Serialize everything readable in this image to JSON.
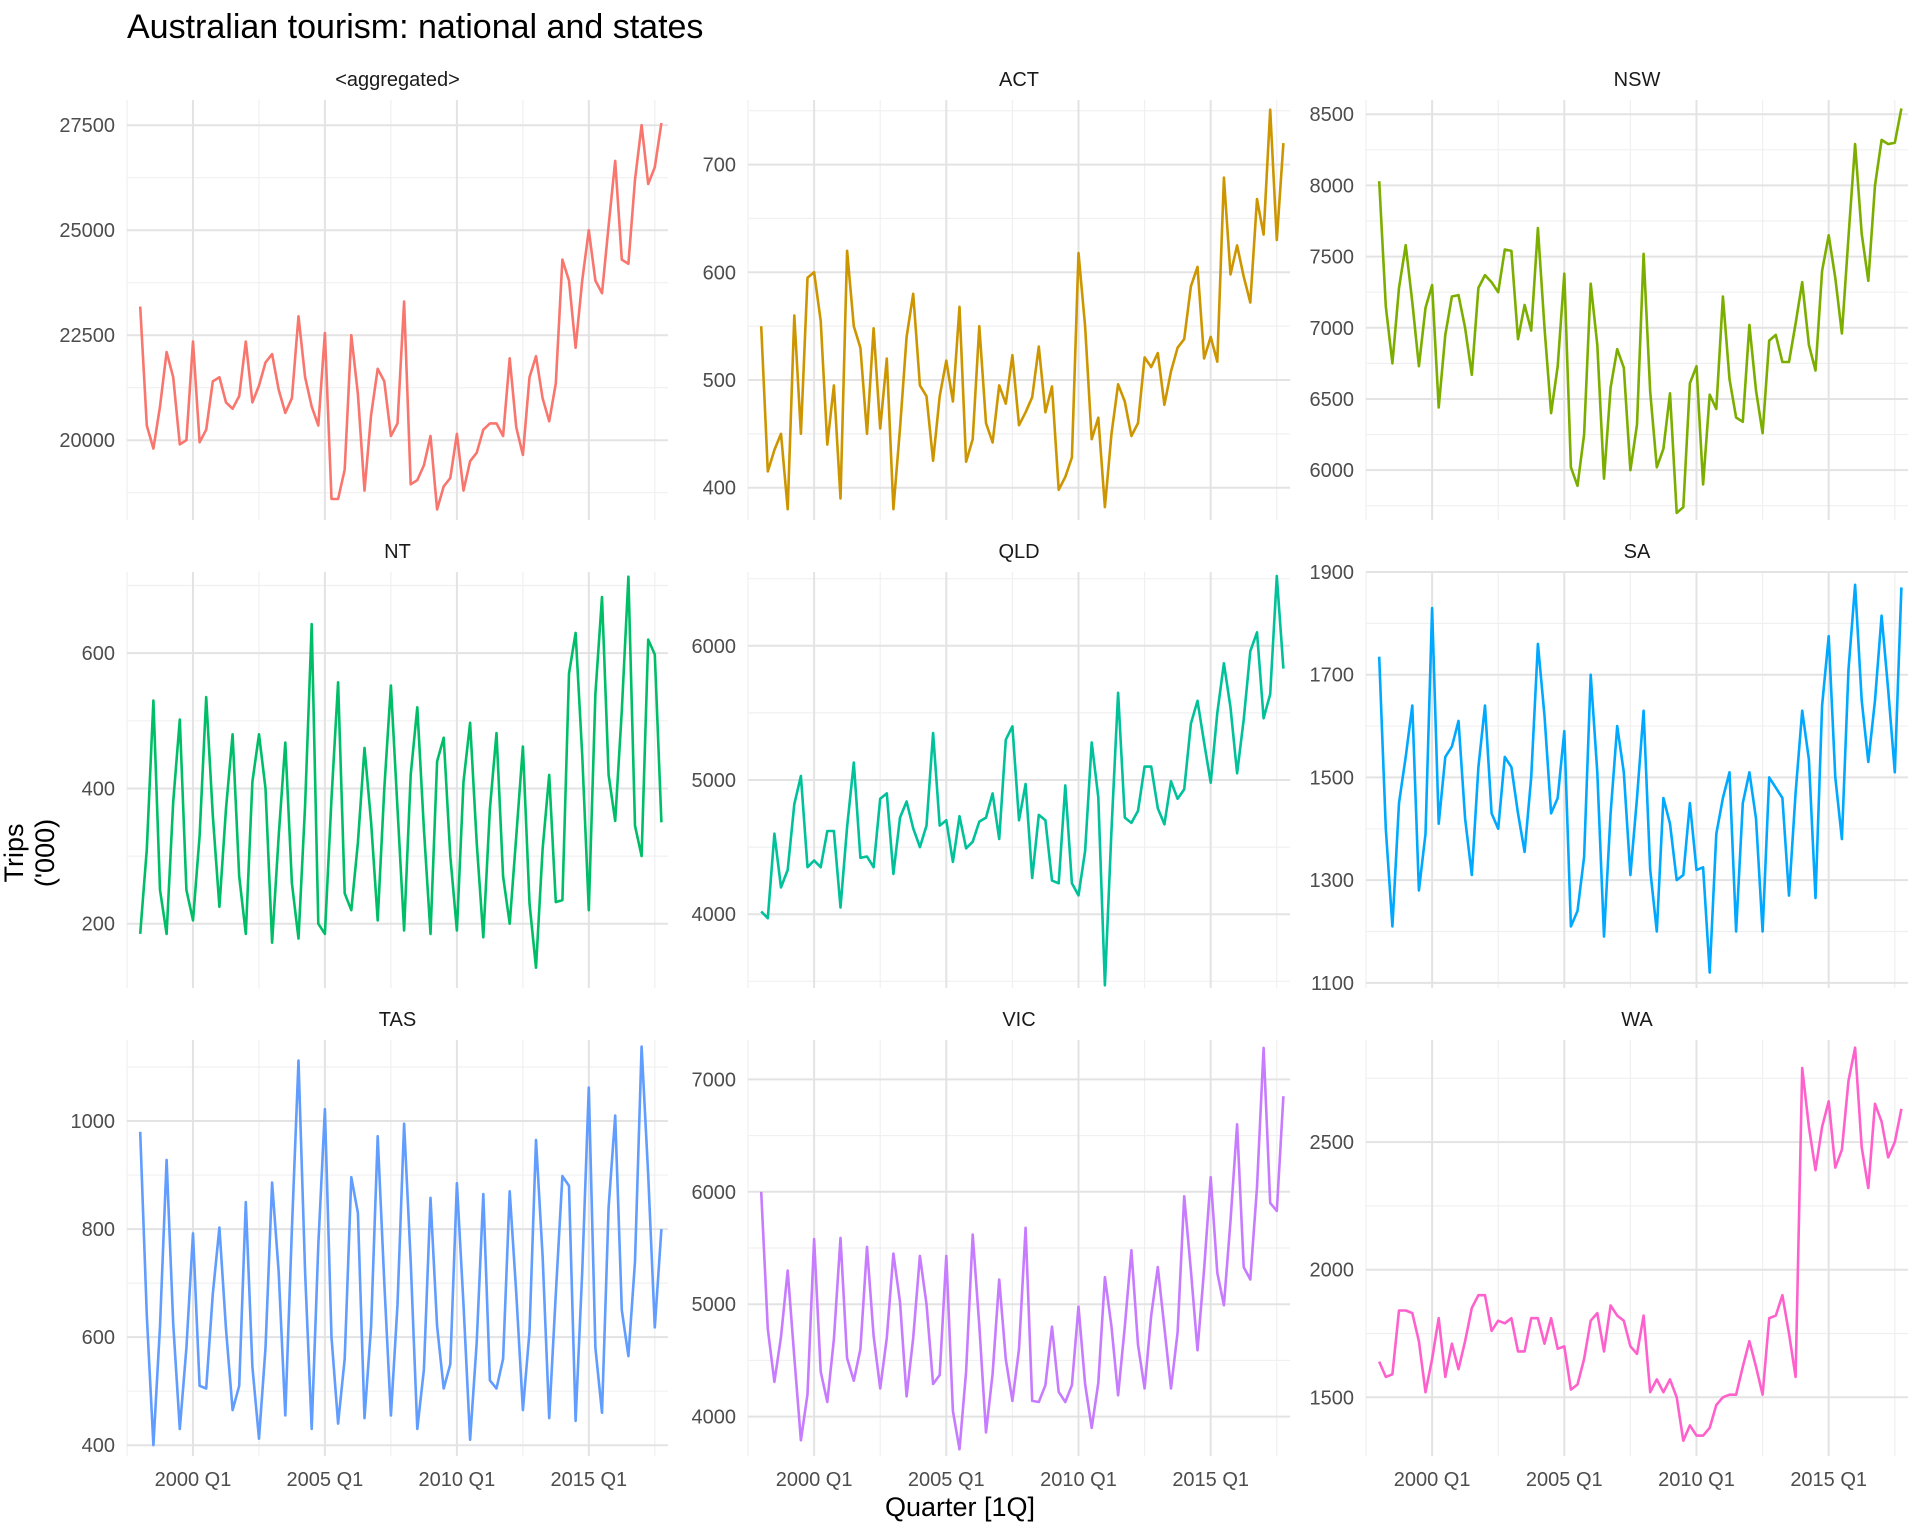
{
  "title": "Australian tourism: national and states",
  "ylabel": "Trips ('000)",
  "xlabel": "Quarter [1Q]",
  "chart_data": {
    "type": "line",
    "title": "Australian tourism: national and states",
    "xlabel": "Quarter [1Q]",
    "ylabel": "Trips ('000)",
    "x_tick_labels": [
      "2000 Q1",
      "2005 Q1",
      "2010 Q1",
      "2015 Q1"
    ],
    "x_tick_values": [
      2000,
      2005,
      2010,
      2015
    ],
    "x_start": 1998.0,
    "x_step": 0.25,
    "grid": true,
    "legend": "none",
    "panels": [
      {
        "name": "<aggregated>",
        "color": "#F8766D",
        "ylim": [
          18100,
          28100
        ],
        "yticks": [
          20000,
          22500,
          25000,
          27500
        ],
        "yticklabels": [
          "20000",
          "22500",
          "25000",
          "27500"
        ],
        "values": [
          23180,
          20350,
          19800,
          20800,
          22100,
          21500,
          19900,
          20000,
          22350,
          19950,
          20250,
          21400,
          21500,
          20900,
          20750,
          21050,
          22350,
          20900,
          21300,
          21850,
          22050,
          21200,
          20650,
          21000,
          22950,
          21500,
          20800,
          20350,
          22550,
          18600,
          18600,
          19300,
          22500,
          21100,
          18800,
          20600,
          21700,
          21400,
          20100,
          20400,
          23300,
          18950,
          19050,
          19400,
          20100,
          18350,
          18900,
          19100,
          20150,
          18800,
          19500,
          19700,
          20250,
          20400,
          20400,
          20100,
          21950,
          20300,
          19650,
          21500,
          22000,
          21000,
          20450,
          21350,
          24300,
          23800,
          22200,
          23800,
          25000,
          23800,
          23500,
          25100,
          26650,
          24300,
          24200,
          26200,
          27500,
          26100,
          26500,
          27550
        ]
      },
      {
        "name": "ACT",
        "color": "#CD9600",
        "ylim": [
          370,
          760
        ],
        "yticks": [
          400,
          500,
          600,
          700
        ],
        "yticklabels": [
          "400",
          "500",
          "600",
          "700"
        ],
        "values": [
          550,
          415,
          435,
          450,
          380,
          560,
          450,
          595,
          600,
          555,
          440,
          495,
          390,
          620,
          550,
          530,
          450,
          548,
          455,
          520,
          380,
          455,
          540,
          580,
          495,
          485,
          425,
          485,
          518,
          480,
          568,
          424,
          445,
          550,
          460,
          442,
          495,
          478,
          523,
          458,
          470,
          484,
          531,
          470,
          494,
          398,
          410,
          428,
          618,
          550,
          445,
          465,
          382,
          450,
          496,
          480,
          448,
          460,
          521,
          512,
          525,
          477,
          508,
          530,
          538,
          587,
          605,
          520,
          540,
          517,
          688,
          598,
          625,
          596,
          572,
          668,
          635,
          751,
          630,
          720
        ]
      },
      {
        "name": "NSW",
        "color": "#7CAE00",
        "ylim": [
          5650,
          8600
        ],
        "yticks": [
          6000,
          6500,
          7000,
          7500,
          8000,
          8500
        ],
        "yticklabels": [
          "6000",
          "6500",
          "7000",
          "7500",
          "8000",
          "8500"
        ],
        "values": [
          8030,
          7150,
          6750,
          7280,
          7580,
          7180,
          6730,
          7140,
          7300,
          6440,
          6950,
          7220,
          7230,
          7000,
          6670,
          7280,
          7370,
          7320,
          7250,
          7550,
          7540,
          6920,
          7160,
          6980,
          7700,
          7000,
          6400,
          6730,
          7380,
          6020,
          5890,
          6250,
          7310,
          6880,
          5940,
          6580,
          6850,
          6720,
          6000,
          6320,
          7520,
          6550,
          6020,
          6150,
          6540,
          5700,
          5740,
          6610,
          6730,
          5900,
          6530,
          6430,
          7220,
          6640,
          6370,
          6340,
          7020,
          6560,
          6260,
          6910,
          6950,
          6760,
          6760,
          7030,
          7320,
          6880,
          6700,
          7400,
          7650,
          7350,
          6960,
          7640,
          8290,
          7660,
          7330,
          8000,
          8320,
          8290,
          8300,
          8540
        ]
      },
      {
        "name": "NT",
        "color": "#00BE67",
        "ylim": [
          105,
          720
        ],
        "yticks": [
          200,
          400,
          600
        ],
        "yticklabels": [
          "200",
          "400",
          "600"
        ],
        "values": [
          185,
          310,
          530,
          250,
          185,
          380,
          502,
          250,
          205,
          330,
          535,
          360,
          225,
          370,
          480,
          270,
          185,
          410,
          480,
          400,
          172,
          330,
          468,
          260,
          178,
          375,
          643,
          200,
          185,
          385,
          557,
          245,
          220,
          320,
          460,
          350,
          205,
          400,
          552,
          370,
          190,
          420,
          520,
          340,
          185,
          440,
          475,
          300,
          190,
          410,
          497,
          320,
          180,
          370,
          482,
          270,
          200,
          330,
          462,
          230,
          135,
          310,
          420,
          232,
          235,
          570,
          630,
          450,
          220,
          540,
          683,
          420,
          352,
          515,
          713,
          345,
          300,
          620,
          598,
          350
        ]
      },
      {
        "name": "QLD",
        "color": "#00C19A",
        "ylim": [
          3450,
          6550
        ],
        "yticks": [
          4000,
          5000,
          6000
        ],
        "yticklabels": [
          "4000",
          "5000",
          "6000"
        ],
        "values": [
          4020,
          3970,
          4600,
          4200,
          4330,
          4820,
          5030,
          4350,
          4400,
          4350,
          4620,
          4620,
          4050,
          4650,
          5130,
          4420,
          4430,
          4350,
          4860,
          4900,
          4300,
          4720,
          4840,
          4640,
          4500,
          4660,
          5350,
          4660,
          4700,
          4390,
          4730,
          4490,
          4540,
          4690,
          4720,
          4900,
          4560,
          5300,
          5400,
          4700,
          4970,
          4270,
          4740,
          4700,
          4250,
          4230,
          4960,
          4230,
          4140,
          4470,
          5280,
          4870,
          3470,
          4630,
          5650,
          4720,
          4680,
          4770,
          5100,
          5100,
          4790,
          4670,
          4990,
          4860,
          4930,
          5420,
          5590,
          5280,
          4980,
          5500,
          5870,
          5540,
          5050,
          5450,
          5960,
          6100,
          5460,
          5640,
          6520,
          5830
        ]
      },
      {
        "name": "SA",
        "color": "#00A9FF",
        "ylim": [
          1090,
          1900
        ],
        "yticks": [
          1100,
          1300,
          1500,
          1700,
          1900
        ],
        "yticklabels": [
          "1100",
          "1300",
          "1500",
          "1700",
          "1900"
        ],
        "values": [
          1735,
          1400,
          1210,
          1450,
          1540,
          1640,
          1280,
          1390,
          1830,
          1410,
          1540,
          1560,
          1610,
          1420,
          1310,
          1520,
          1640,
          1430,
          1400,
          1540,
          1520,
          1430,
          1355,
          1500,
          1760,
          1620,
          1430,
          1460,
          1590,
          1210,
          1240,
          1345,
          1700,
          1510,
          1190,
          1430,
          1600,
          1510,
          1310,
          1460,
          1630,
          1320,
          1200,
          1460,
          1410,
          1300,
          1310,
          1450,
          1320,
          1325,
          1120,
          1390,
          1460,
          1510,
          1200,
          1450,
          1510,
          1420,
          1200,
          1500,
          1480,
          1460,
          1270,
          1470,
          1630,
          1535,
          1265,
          1640,
          1775,
          1500,
          1380,
          1710,
          1875,
          1650,
          1530,
          1650,
          1815,
          1670,
          1510,
          1870
        ]
      },
      {
        "name": "TAS",
        "color": "#619CFF",
        "ylim": [
          380,
          1150
        ],
        "yticks": [
          400,
          600,
          800,
          1000
        ],
        "yticklabels": [
          "400",
          "600",
          "800",
          "1000"
        ],
        "values": [
          980,
          640,
          400,
          620,
          928,
          625,
          430,
          580,
          792,
          510,
          505,
          680,
          803,
          615,
          465,
          510,
          850,
          545,
          412,
          580,
          886,
          720,
          455,
          800,
          1112,
          720,
          430,
          770,
          1022,
          600,
          440,
          560,
          896,
          830,
          450,
          620,
          972,
          700,
          455,
          660,
          995,
          740,
          430,
          540,
          858,
          620,
          505,
          550,
          885,
          660,
          410,
          590,
          865,
          520,
          505,
          560,
          870,
          680,
          465,
          610,
          965,
          750,
          450,
          680,
          898,
          880,
          445,
          720,
          1062,
          580,
          460,
          840,
          1010,
          650,
          565,
          740,
          1138,
          900,
          618,
          800
        ]
      },
      {
        "name": "VIC",
        "color": "#C77CFF",
        "ylim": [
          3650,
          7350
        ],
        "yticks": [
          4000,
          5000,
          6000,
          7000
        ],
        "yticklabels": [
          "4000",
          "5000",
          "6000",
          "7000"
        ],
        "values": [
          6000,
          4780,
          4310,
          4710,
          5300,
          4530,
          3790,
          4200,
          5580,
          4400,
          4130,
          4690,
          5590,
          4520,
          4320,
          4600,
          5510,
          4720,
          4250,
          4700,
          5450,
          5020,
          4180,
          4700,
          5430,
          5000,
          4290,
          4370,
          5430,
          4050,
          3710,
          4400,
          5620,
          4810,
          3860,
          4380,
          5220,
          4510,
          4140,
          4600,
          5680,
          4140,
          4130,
          4280,
          4800,
          4220,
          4130,
          4280,
          4980,
          4290,
          3900,
          4300,
          5240,
          4800,
          4190,
          4800,
          5480,
          4640,
          4250,
          4900,
          5330,
          4790,
          4250,
          4750,
          5960,
          5300,
          4590,
          5310,
          6130,
          5280,
          4990,
          5740,
          6600,
          5330,
          5220,
          6040,
          7280,
          5900,
          5830,
          6850
        ]
      },
      {
        "name": "WA",
        "color": "#FF61CC",
        "ylim": [
          1270,
          2900
        ],
        "yticks": [
          1500,
          2000,
          2500
        ],
        "yticklabels": [
          "1500",
          "2000",
          "2500"
        ],
        "values": [
          1640,
          1580,
          1590,
          1840,
          1840,
          1830,
          1720,
          1520,
          1650,
          1810,
          1580,
          1710,
          1610,
          1720,
          1850,
          1900,
          1900,
          1760,
          1800,
          1790,
          1810,
          1680,
          1680,
          1810,
          1810,
          1710,
          1810,
          1690,
          1700,
          1530,
          1550,
          1650,
          1800,
          1830,
          1680,
          1860,
          1820,
          1800,
          1700,
          1670,
          1820,
          1520,
          1570,
          1520,
          1570,
          1500,
          1330,
          1390,
          1350,
          1350,
          1380,
          1470,
          1500,
          1510,
          1510,
          1620,
          1720,
          1620,
          1510,
          1810,
          1820,
          1900,
          1750,
          1580,
          2790,
          2560,
          2390,
          2560,
          2660,
          2400,
          2470,
          2740,
          2870,
          2480,
          2320,
          2650,
          2580,
          2440,
          2500,
          2630
        ]
      }
    ]
  }
}
